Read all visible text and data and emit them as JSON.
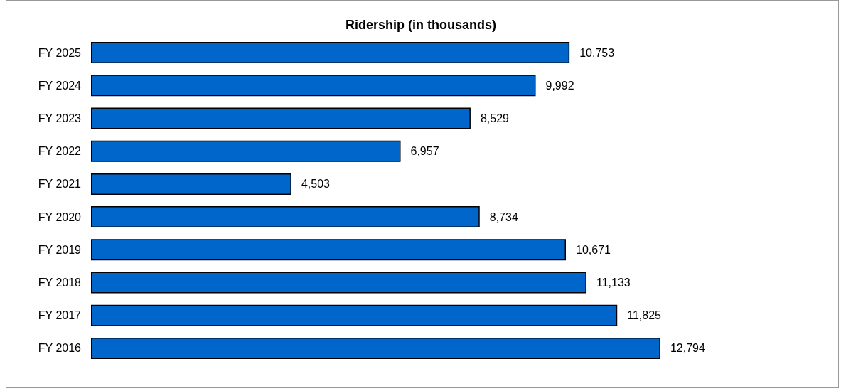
{
  "chart_data": {
    "type": "bar",
    "orientation": "horizontal",
    "title": "Ridership (in thousands)",
    "categories": [
      "FY 2025",
      "FY 2024",
      "FY 2023",
      "FY 2022",
      "FY 2021",
      "FY 2020",
      "FY 2019",
      "FY 2018",
      "FY 2017",
      "FY 2016"
    ],
    "values": [
      10753,
      9992,
      8529,
      6957,
      4503,
      8734,
      10671,
      11133,
      11825,
      12794
    ],
    "value_labels": [
      "10,753",
      "9,992",
      "8,529",
      "6,957",
      "4,503",
      "8,734",
      "10,671",
      "11,133",
      "11,825",
      "12,794"
    ],
    "color": "#0066cc",
    "tick_labels": "y"
  }
}
